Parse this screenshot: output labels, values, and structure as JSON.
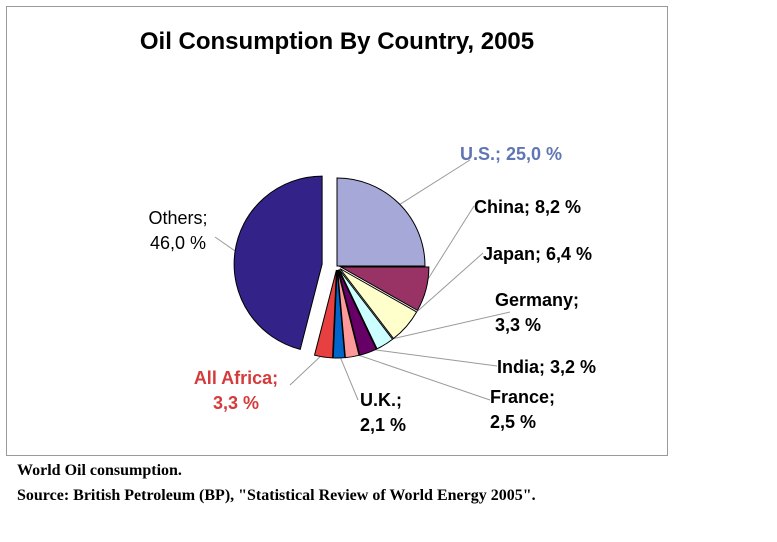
{
  "chart_data": {
    "type": "pie",
    "title": "Oil Consumption By Country, 2005",
    "slices": [
      {
        "name": "U.S.",
        "label_lines": [
          "U.S.; 25,0 %"
        ],
        "value": 25.0,
        "color": "#a6a8d8",
        "label_color": "#6076b4",
        "bold": true
      },
      {
        "name": "China",
        "label_lines": [
          "China; 8,2 %"
        ],
        "value": 8.2,
        "color": "#993366",
        "label_color": "#000000",
        "bold": true
      },
      {
        "name": "Japan",
        "label_lines": [
          "Japan; 6,4 %"
        ],
        "value": 6.4,
        "color": "#ffffcc",
        "label_color": "#000000",
        "bold": true
      },
      {
        "name": "Germany",
        "label_lines": [
          "Germany;",
          "3,3 %"
        ],
        "value": 3.3,
        "color": "#ccffff",
        "label_color": "#000000",
        "bold": true
      },
      {
        "name": "India",
        "label_lines": [
          "India; 3,2 %"
        ],
        "value": 3.2,
        "color": "#660066",
        "label_color": "#000000",
        "bold": true
      },
      {
        "name": "France",
        "label_lines": [
          "France;",
          "2,5 %"
        ],
        "value": 2.5,
        "color": "#ff9999",
        "label_color": "#000000",
        "bold": true
      },
      {
        "name": "U.K.",
        "label_lines": [
          "U.K.;",
          "2,1 %"
        ],
        "value": 2.1,
        "color": "#0066cc",
        "label_color": "#000000",
        "bold": true
      },
      {
        "name": "All Africa",
        "label_lines": [
          "All Africa;",
          "3,3 %"
        ],
        "value": 3.3,
        "color": "#e84040",
        "label_color": "#d63a3a",
        "bold": true
      },
      {
        "name": "Others",
        "label_lines": [
          "Others;",
          "46,0 %"
        ],
        "value": 46.0,
        "color": "#332288",
        "label_color": "#000000",
        "bold": false
      }
    ],
    "legend": "none",
    "grid": false
  },
  "caption": {
    "line1": "World Oil consumption.",
    "line2": "Source: British Petroleum (BP), \"Statistical Review of World Energy 2005\"."
  }
}
